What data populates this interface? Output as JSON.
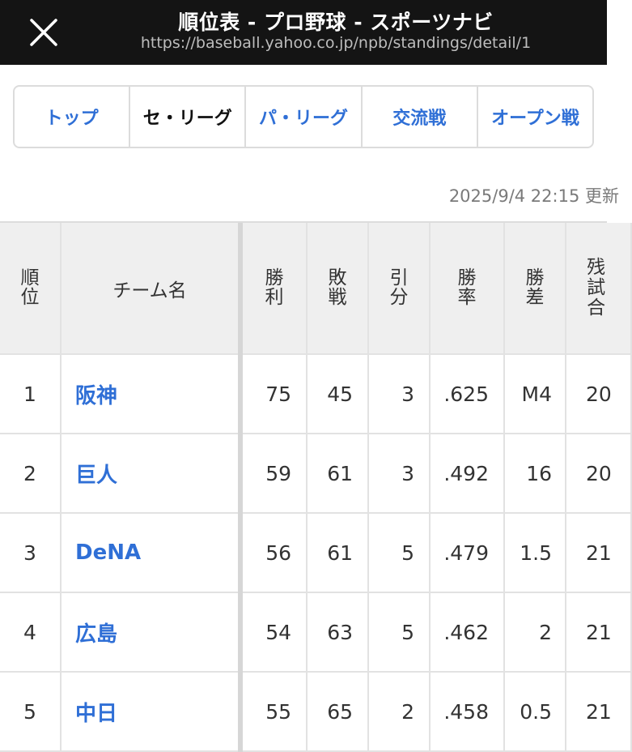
{
  "header": {
    "title": "順位表 - プロ野球 - スポーツナビ",
    "url": "https://baseball.yahoo.co.jp/npb/standings/detail/1"
  },
  "tabs": [
    {
      "label": "トップ",
      "active": false
    },
    {
      "label": "セ・リーグ",
      "active": true
    },
    {
      "label": "パ・リーグ",
      "active": false
    },
    {
      "label": "交流戦",
      "active": false
    },
    {
      "label": "オープン戦",
      "active": false
    }
  ],
  "updated": "2025/9/4 22:15 更新",
  "table": {
    "headers": {
      "rank": "順位",
      "team": "チーム名",
      "wins": "勝利",
      "losses": "敗戦",
      "ties": "引分",
      "pct": "勝率",
      "gb": "勝差",
      "remaining": "残試合"
    },
    "rows": [
      {
        "rank": "1",
        "team": "阪神",
        "wins": "75",
        "losses": "45",
        "ties": "3",
        "pct": ".625",
        "gb": "M4",
        "remaining": "20"
      },
      {
        "rank": "2",
        "team": "巨人",
        "wins": "59",
        "losses": "61",
        "ties": "3",
        "pct": ".492",
        "gb": "16",
        "remaining": "20"
      },
      {
        "rank": "3",
        "team": "DeNA",
        "wins": "56",
        "losses": "61",
        "ties": "5",
        "pct": ".479",
        "gb": "1.5",
        "remaining": "21"
      },
      {
        "rank": "4",
        "team": "広島",
        "wins": "54",
        "losses": "63",
        "ties": "5",
        "pct": ".462",
        "gb": "2",
        "remaining": "21"
      },
      {
        "rank": "5",
        "team": "中日",
        "wins": "55",
        "losses": "65",
        "ties": "2",
        "pct": ".458",
        "gb": "0.5",
        "remaining": "21"
      }
    ]
  },
  "colors": {
    "topbar": "#141414",
    "link": "#2f6fd6",
    "header_bg": "#efefef"
  }
}
